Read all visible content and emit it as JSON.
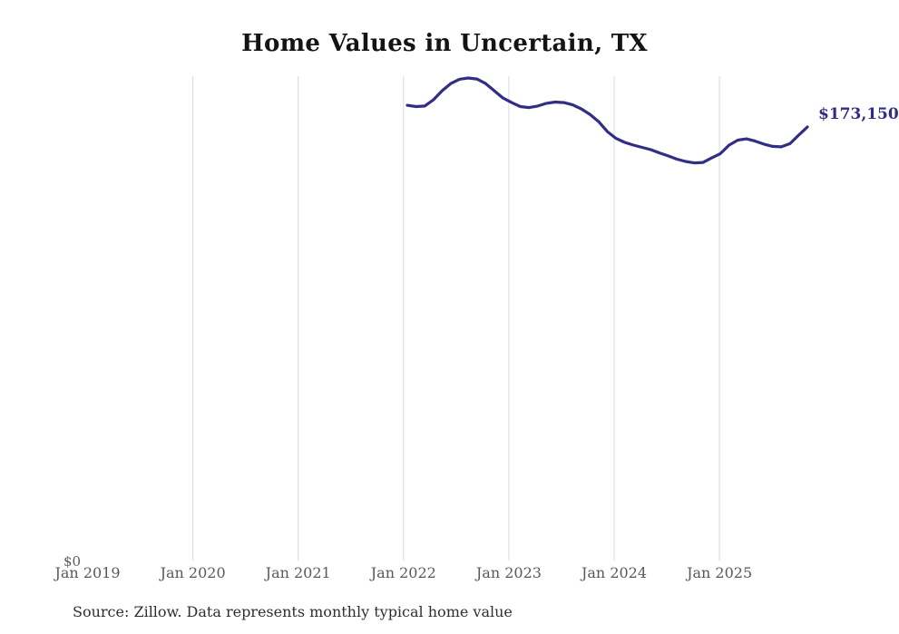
{
  "title": "Home Values in Uncertain, TX",
  "y_axis": {
    "zero_label": "$0"
  },
  "end_label": "$173,150",
  "footer": {
    "source_note": "Source: Zillow. Data represents monthly typical home value"
  },
  "colors": {
    "line": "#322d85",
    "end_label_text": "#322d85",
    "gridline": "#d8d8d8",
    "axis_text": "#595959",
    "title_text": "#141414",
    "source_text": "#2e2e2e",
    "background": "#ffffff"
  },
  "x_axis": {
    "ticks": [
      {
        "label": "Jan 2019",
        "gridline": false
      },
      {
        "label": "Jan 2020",
        "gridline": true
      },
      {
        "label": "Jan 2021",
        "gridline": true
      },
      {
        "label": "Jan 2022",
        "gridline": true
      },
      {
        "label": "Jan 2023",
        "gridline": true
      },
      {
        "label": "Jan 2024",
        "gridline": true
      },
      {
        "label": "Jan 2025",
        "gridline": true
      }
    ]
  },
  "chart_data": {
    "type": "line",
    "title": "Home Values in Uncertain, TX",
    "xlabel": "",
    "ylabel": "",
    "ylim": [
      0,
      200000
    ],
    "grid": "vertical-only",
    "legend_position": "none",
    "x_tick_labels": [
      "Jan 2019",
      "Jan 2020",
      "Jan 2021",
      "Jan 2022",
      "Jan 2023",
      "Jan 2024",
      "Jan 2025"
    ],
    "y_axis_zero_label": "$0",
    "end_label": "$173,150",
    "end_value": 173150,
    "source_note": "Source: Zillow. Data represents monthly typical home value",
    "x": [
      "Jan 2022",
      "Feb 2022",
      "Mar 2022",
      "Apr 2022",
      "May 2022",
      "Jun 2022",
      "Jul 2022",
      "Aug 2022",
      "Sep 2022",
      "Oct 2022",
      "Nov 2022",
      "Dec 2022",
      "Jan 2023",
      "Feb 2023",
      "Mar 2023",
      "Apr 2023",
      "May 2023",
      "Jun 2023",
      "Jul 2023",
      "Aug 2023",
      "Sep 2023",
      "Oct 2023",
      "Nov 2023",
      "Dec 2023",
      "Jan 2024",
      "Feb 2024",
      "Mar 2024",
      "Apr 2024",
      "May 2024",
      "Jun 2024",
      "Jul 2024",
      "Aug 2024",
      "Sep 2024",
      "Oct 2024",
      "Nov 2024",
      "Dec 2024",
      "Jan 2025",
      "Feb 2025",
      "Mar 2025",
      "Apr 2025",
      "May 2025",
      "Jun 2025",
      "Jul 2025",
      "Aug 2025",
      "Sep 2025",
      "Oct 2025",
      "Nov 2025"
    ],
    "series": [
      {
        "name": "Typical home value",
        "values": [
          181800,
          181300,
          181500,
          184000,
          187600,
          190500,
          192200,
          192700,
          192300,
          190500,
          187600,
          184700,
          182900,
          181300,
          180900,
          181500,
          182600,
          183100,
          182900,
          182000,
          180400,
          178200,
          175300,
          171300,
          168600,
          167000,
          165900,
          165000,
          164100,
          162800,
          161600,
          160300,
          159400,
          158800,
          159000,
          160800,
          162500,
          165900,
          167900,
          168400,
          167500,
          166300,
          165400,
          165200,
          166500,
          169900,
          173150
        ]
      }
    ]
  }
}
